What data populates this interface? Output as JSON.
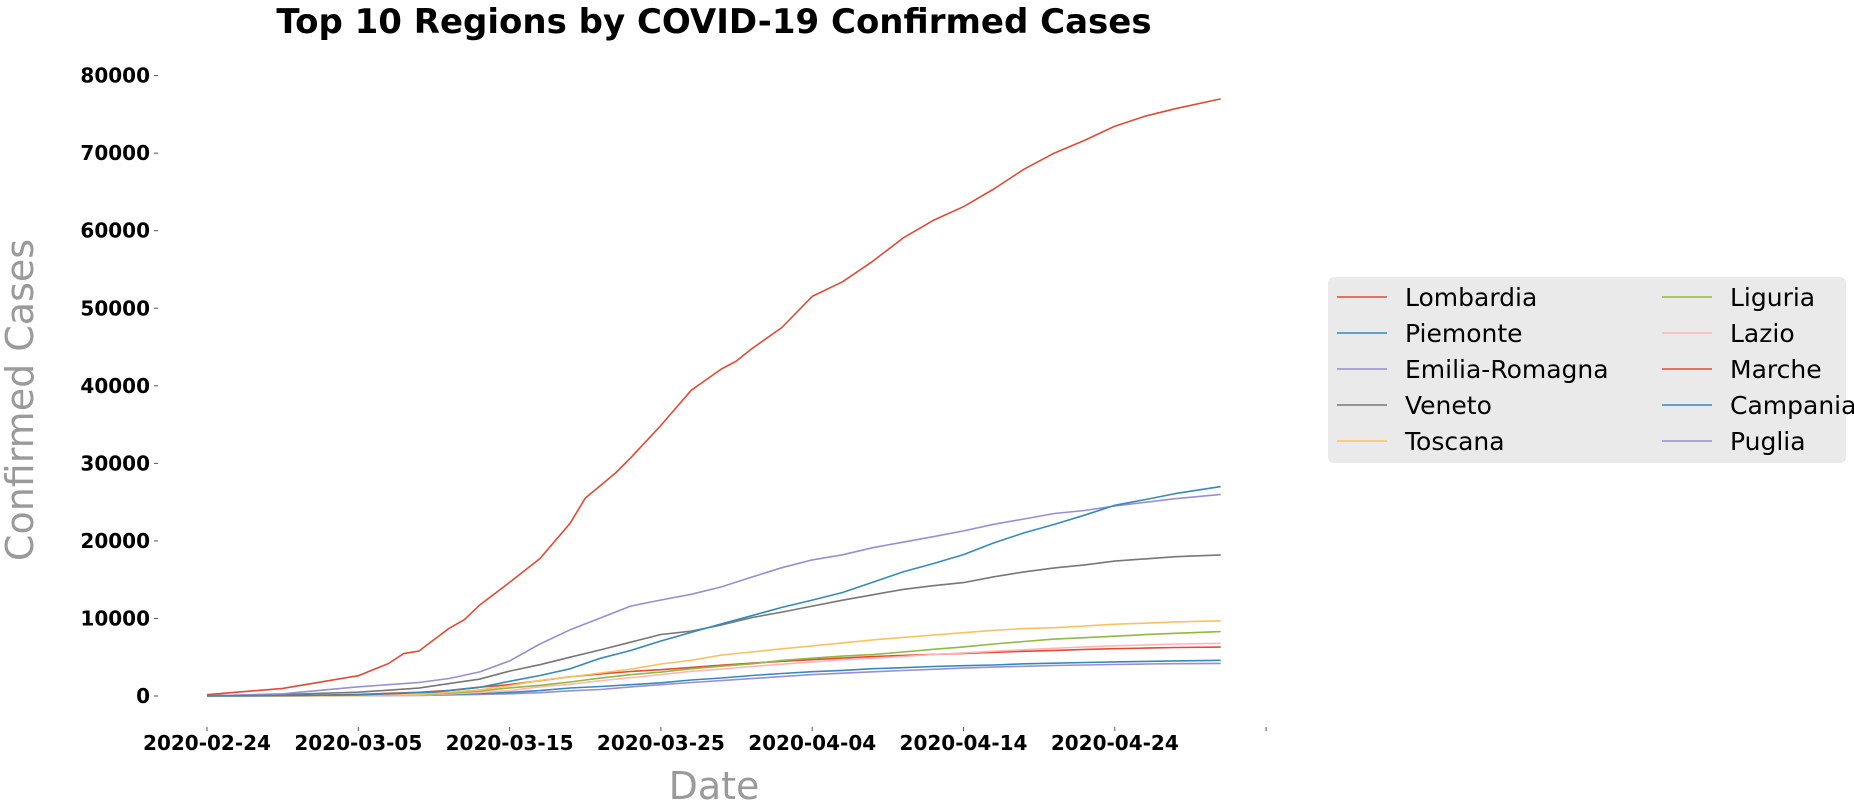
{
  "chart_data": {
    "type": "line",
    "title": "Top 10 Regions by COVID-19 Confirmed Cases",
    "xlabel": "Date",
    "ylabel": "Confirmed Cases",
    "x_start": "2020-02-24",
    "x_end": "2020-05-01",
    "x_axis_max_day": 70,
    "x_ticks": [
      {
        "label": "2020-02-24",
        "day": 0
      },
      {
        "label": "2020-03-05",
        "day": 10
      },
      {
        "label": "2020-03-15",
        "day": 20
      },
      {
        "label": "2020-03-25",
        "day": 30
      },
      {
        "label": "2020-04-04",
        "day": 40
      },
      {
        "label": "2020-04-14",
        "day": 50
      },
      {
        "label": "2020-04-24",
        "day": 60
      }
    ],
    "y_ticks": [
      "0",
      "10000",
      "20000",
      "30000",
      "40000",
      "50000",
      "60000",
      "70000",
      "80000"
    ],
    "ylim": [
      -4000,
      82000
    ],
    "legend_position": "right",
    "series": [
      {
        "name": "Lombardia",
        "color": "#e24a33",
        "points": [
          [
            0,
            172
          ],
          [
            5,
            984
          ],
          [
            10,
            2612
          ],
          [
            12,
            4189
          ],
          [
            13,
            5469
          ],
          [
            14,
            5791
          ],
          [
            16,
            8725
          ],
          [
            17,
            9820
          ],
          [
            18,
            11685
          ],
          [
            20,
            14649
          ],
          [
            22,
            17713
          ],
          [
            24,
            22264
          ],
          [
            25,
            25515
          ],
          [
            27,
            28761
          ],
          [
            28,
            30703
          ],
          [
            30,
            34889
          ],
          [
            32,
            39415
          ],
          [
            34,
            42161
          ],
          [
            35,
            43208
          ],
          [
            36,
            44773
          ],
          [
            38,
            47520
          ],
          [
            40,
            51534
          ],
          [
            42,
            53414
          ],
          [
            44,
            56048
          ],
          [
            46,
            59052
          ],
          [
            48,
            61326
          ],
          [
            50,
            63094
          ],
          [
            52,
            65381
          ],
          [
            54,
            67931
          ],
          [
            56,
            70000
          ],
          [
            58,
            71640
          ],
          [
            60,
            73479
          ],
          [
            62,
            74764
          ],
          [
            64,
            75728
          ],
          [
            67,
            77000
          ]
        ]
      },
      {
        "name": "Piemonte",
        "color": "#348abd",
        "points": [
          [
            0,
            3
          ],
          [
            10,
            143
          ],
          [
            15,
            501
          ],
          [
            18,
            1111
          ],
          [
            20,
            1897
          ],
          [
            22,
            2641
          ],
          [
            24,
            3506
          ],
          [
            26,
            4861
          ],
          [
            28,
            5865
          ],
          [
            30,
            7092
          ],
          [
            32,
            8206
          ],
          [
            34,
            9301
          ],
          [
            36,
            10353
          ],
          [
            38,
            11430
          ],
          [
            40,
            12362
          ],
          [
            42,
            13343
          ],
          [
            44,
            14671
          ],
          [
            46,
            16008
          ],
          [
            48,
            17075
          ],
          [
            50,
            18229
          ],
          [
            52,
            19741
          ],
          [
            54,
            21026
          ],
          [
            56,
            22128
          ],
          [
            58,
            23313
          ],
          [
            60,
            24591
          ],
          [
            62,
            25320
          ],
          [
            64,
            26100
          ],
          [
            67,
            27000
          ]
        ]
      },
      {
        "name": "Emilia-Romagna",
        "color": "#988ed5",
        "points": [
          [
            0,
            18
          ],
          [
            5,
            285
          ],
          [
            10,
            1180
          ],
          [
            14,
            1739
          ],
          [
            16,
            2263
          ],
          [
            18,
            3093
          ],
          [
            20,
            4525
          ],
          [
            22,
            6705
          ],
          [
            24,
            8531
          ],
          [
            26,
            10054
          ],
          [
            28,
            11588
          ],
          [
            30,
            12383
          ],
          [
            32,
            13119
          ],
          [
            34,
            14074
          ],
          [
            36,
            15333
          ],
          [
            38,
            16540
          ],
          [
            40,
            17556
          ],
          [
            42,
            18205
          ],
          [
            44,
            19128
          ],
          [
            46,
            19829
          ],
          [
            48,
            20548
          ],
          [
            50,
            21290
          ],
          [
            52,
            22144
          ],
          [
            54,
            22821
          ],
          [
            56,
            23532
          ],
          [
            58,
            23917
          ],
          [
            60,
            24503
          ],
          [
            62,
            24982
          ],
          [
            64,
            25436
          ],
          [
            67,
            26000
          ]
        ]
      },
      {
        "name": "Veneto",
        "color": "#777777",
        "points": [
          [
            0,
            33
          ],
          [
            5,
            192
          ],
          [
            10,
            488
          ],
          [
            14,
            1023
          ],
          [
            16,
            1595
          ],
          [
            18,
            2172
          ],
          [
            20,
            3214
          ],
          [
            22,
            4031
          ],
          [
            24,
            5005
          ],
          [
            26,
            5947
          ],
          [
            28,
            6935
          ],
          [
            30,
            7930
          ],
          [
            32,
            8358
          ],
          [
            34,
            9155
          ],
          [
            36,
            10111
          ],
          [
            38,
            10824
          ],
          [
            40,
            11588
          ],
          [
            42,
            12352
          ],
          [
            44,
            13049
          ],
          [
            46,
            13746
          ],
          [
            48,
            14225
          ],
          [
            50,
            14624
          ],
          [
            52,
            15374
          ],
          [
            54,
            16000
          ],
          [
            56,
            16524
          ],
          [
            58,
            16904
          ],
          [
            60,
            17391
          ],
          [
            62,
            17684
          ],
          [
            64,
            17960
          ],
          [
            67,
            18200
          ]
        ]
      },
      {
        "name": "Toscana",
        "color": "#fbc15e",
        "points": [
          [
            0,
            0
          ],
          [
            5,
            19
          ],
          [
            10,
            61
          ],
          [
            14,
            208
          ],
          [
            16,
            489
          ],
          [
            18,
            781
          ],
          [
            20,
            1330
          ],
          [
            22,
            2011
          ],
          [
            24,
            2461
          ],
          [
            26,
            2972
          ],
          [
            28,
            3450
          ],
          [
            30,
            4122
          ],
          [
            32,
            4608
          ],
          [
            34,
            5273
          ],
          [
            36,
            5671
          ],
          [
            38,
            6085
          ],
          [
            40,
            6461
          ],
          [
            42,
            6841
          ],
          [
            44,
            7235
          ],
          [
            46,
            7554
          ],
          [
            48,
            7855
          ],
          [
            50,
            8163
          ],
          [
            52,
            8468
          ],
          [
            54,
            8690
          ],
          [
            56,
            8804
          ],
          [
            58,
            9013
          ],
          [
            60,
            9255
          ],
          [
            62,
            9386
          ],
          [
            64,
            9560
          ],
          [
            67,
            9700
          ]
        ]
      },
      {
        "name": "Liguria",
        "color": "#8eba42",
        "points": [
          [
            0,
            0
          ],
          [
            5,
            20
          ],
          [
            10,
            64
          ],
          [
            14,
            170
          ],
          [
            16,
            357
          ],
          [
            18,
            636
          ],
          [
            20,
            1039
          ],
          [
            22,
            1378
          ],
          [
            24,
            1808
          ],
          [
            26,
            2311
          ],
          [
            28,
            2744
          ],
          [
            30,
            3076
          ],
          [
            32,
            3513
          ],
          [
            34,
            3840
          ],
          [
            36,
            4157
          ],
          [
            38,
            4587
          ],
          [
            40,
            4878
          ],
          [
            42,
            5146
          ],
          [
            44,
            5337
          ],
          [
            46,
            5668
          ],
          [
            48,
            6028
          ],
          [
            50,
            6327
          ],
          [
            52,
            6708
          ],
          [
            54,
            7029
          ],
          [
            56,
            7341
          ],
          [
            58,
            7524
          ],
          [
            60,
            7706
          ],
          [
            62,
            7913
          ],
          [
            64,
            8091
          ],
          [
            67,
            8300
          ]
        ]
      },
      {
        "name": "Lazio",
        "color": "#ffb5b8",
        "points": [
          [
            0,
            3
          ],
          [
            5,
            5
          ],
          [
            10,
            44
          ],
          [
            14,
            102
          ],
          [
            16,
            276
          ],
          [
            18,
            462
          ],
          [
            20,
            684
          ],
          [
            22,
            1190
          ],
          [
            24,
            1528
          ],
          [
            26,
            1979
          ],
          [
            28,
            2366
          ],
          [
            30,
            2758
          ],
          [
            32,
            3182
          ],
          [
            34,
            3464
          ],
          [
            36,
            3808
          ],
          [
            38,
            4102
          ],
          [
            40,
            4386
          ],
          [
            42,
            4683
          ],
          [
            44,
            4880
          ],
          [
            46,
            5099
          ],
          [
            48,
            5349
          ],
          [
            50,
            5555
          ],
          [
            52,
            5781
          ],
          [
            54,
            5969
          ],
          [
            56,
            6146
          ],
          [
            58,
            6326
          ],
          [
            60,
            6467
          ],
          [
            62,
            6563
          ],
          [
            64,
            6700
          ],
          [
            67,
            6800
          ]
        ]
      },
      {
        "name": "Marche",
        "color": "#e24a33",
        "points": [
          [
            0,
            0
          ],
          [
            5,
            20
          ],
          [
            10,
            202
          ],
          [
            14,
            479
          ],
          [
            16,
            723
          ],
          [
            18,
            1131
          ],
          [
            20,
            1472
          ],
          [
            22,
            1970
          ],
          [
            24,
            2473
          ],
          [
            26,
            2856
          ],
          [
            28,
            3160
          ],
          [
            30,
            3397
          ],
          [
            32,
            3687
          ],
          [
            34,
            3969
          ],
          [
            36,
            4229
          ],
          [
            38,
            4470
          ],
          [
            40,
            4686
          ],
          [
            42,
            4891
          ],
          [
            44,
            5080
          ],
          [
            46,
            5233
          ],
          [
            48,
            5365
          ],
          [
            50,
            5486
          ],
          [
            52,
            5633
          ],
          [
            54,
            5761
          ],
          [
            56,
            5880
          ],
          [
            58,
            6010
          ],
          [
            60,
            6100
          ],
          [
            62,
            6180
          ],
          [
            64,
            6250
          ],
          [
            67,
            6300
          ]
        ]
      },
      {
        "name": "Campania",
        "color": "#348abd",
        "points": [
          [
            0,
            0
          ],
          [
            5,
            13
          ],
          [
            10,
            66
          ],
          [
            14,
            120
          ],
          [
            16,
            225
          ],
          [
            18,
            338
          ],
          [
            20,
            460
          ],
          [
            22,
            695
          ],
          [
            24,
            1035
          ],
          [
            26,
            1225
          ],
          [
            28,
            1462
          ],
          [
            30,
            1706
          ],
          [
            32,
            2058
          ],
          [
            34,
            2318
          ],
          [
            36,
            2649
          ],
          [
            38,
            2896
          ],
          [
            40,
            3138
          ],
          [
            42,
            3306
          ],
          [
            44,
            3517
          ],
          [
            46,
            3648
          ],
          [
            48,
            3806
          ],
          [
            50,
            3913
          ],
          [
            52,
            4000
          ],
          [
            54,
            4146
          ],
          [
            56,
            4232
          ],
          [
            58,
            4323
          ],
          [
            60,
            4393
          ],
          [
            62,
            4460
          ],
          [
            64,
            4520
          ],
          [
            67,
            4600
          ]
        ]
      },
      {
        "name": "Puglia",
        "color": "#988ed5",
        "points": [
          [
            0,
            0
          ],
          [
            5,
            3
          ],
          [
            10,
            42
          ],
          [
            14,
            75
          ],
          [
            16,
            130
          ],
          [
            18,
            207
          ],
          [
            20,
            290
          ],
          [
            22,
            430
          ],
          [
            24,
            673
          ],
          [
            26,
            842
          ],
          [
            28,
            1174
          ],
          [
            30,
            1459
          ],
          [
            32,
            1735
          ],
          [
            34,
            1982
          ],
          [
            36,
            2238
          ],
          [
            38,
            2503
          ],
          [
            40,
            2759
          ],
          [
            42,
            2935
          ],
          [
            44,
            3121
          ],
          [
            46,
            3282
          ],
          [
            48,
            3443
          ],
          [
            50,
            3596
          ],
          [
            52,
            3732
          ],
          [
            54,
            3830
          ],
          [
            56,
            3927
          ],
          [
            58,
            4000
          ],
          [
            60,
            4060
          ],
          [
            62,
            4120
          ],
          [
            64,
            4160
          ],
          [
            67,
            4200
          ]
        ]
      }
    ]
  }
}
